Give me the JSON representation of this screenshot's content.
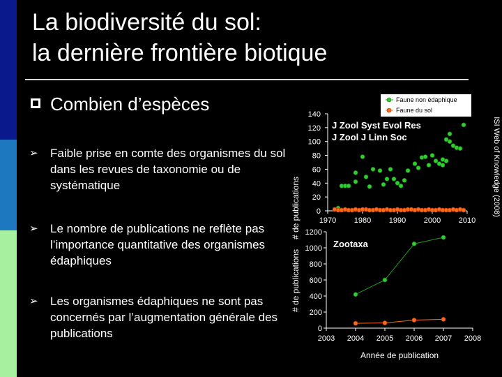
{
  "slide": {
    "title_line1": "La biodiversité du sol:",
    "title_line2": "la dernière frontière biotique",
    "heading": "Combien d’espèces",
    "bullets": [
      "Faible prise en comte des organismes du sol dans les revues de taxonomie ou de systématique",
      "Le nombre de publications ne reflète pas l’importance quantitative des organismes édaphiques",
      "Les organismes édaphiques ne sont pas concernés par l’augmentation générale des publications"
    ],
    "source": "ISI Web of Knowledge (2008)"
  },
  "colors": {
    "green": "#33cc33",
    "orange": "#ff6a1a",
    "line": "#1f9c1f"
  },
  "chart_data": [
    {
      "type": "scatter",
      "annotation_line1": "J Zool Syst Evol Res",
      "annotation_line2": "J Zool J Linn Soc",
      "ylabel": "# de publications",
      "xlabel": "",
      "xlim": [
        1970,
        2010
      ],
      "ylim": [
        0,
        140
      ],
      "xticks": [
        1970,
        1980,
        1990,
        2000,
        2010
      ],
      "yticks": [
        0,
        20,
        40,
        60,
        80,
        100,
        120,
        140
      ],
      "legend_position": "top-right",
      "series": [
        {
          "name": "Faune non édaphique",
          "color": "#33cc33",
          "points": [
            [
              1973,
              4
            ],
            [
              1974,
              36
            ],
            [
              1975,
              36
            ],
            [
              1976,
              36
            ],
            [
              1978,
              55
            ],
            [
              1978,
              42
            ],
            [
              1980,
              78
            ],
            [
              1981,
              49
            ],
            [
              1982,
              35
            ],
            [
              1983,
              60
            ],
            [
              1985,
              58
            ],
            [
              1986,
              38
            ],
            [
              1987,
              46
            ],
            [
              1988,
              60
            ],
            [
              1989,
              46
            ],
            [
              1990,
              40
            ],
            [
              1991,
              36
            ],
            [
              1992,
              44
            ],
            [
              1993,
              58
            ],
            [
              1995,
              68
            ],
            [
              1996,
              62
            ],
            [
              1997,
              77
            ],
            [
              1998,
              78
            ],
            [
              1999,
              66
            ],
            [
              2000,
              80
            ],
            [
              2001,
              72
            ],
            [
              2002,
              68
            ],
            [
              2003,
              74
            ],
            [
              2003,
              66
            ],
            [
              2004,
              72
            ],
            [
              2004,
              103
            ],
            [
              2005,
              100
            ],
            [
              2005,
              111
            ],
            [
              2006,
              94
            ],
            [
              2007,
              91
            ],
            [
              2008,
              90
            ],
            [
              2009,
              124
            ]
          ]
        },
        {
          "name": "Faune du sol",
          "color": "#ff6a1a",
          "points": [
            [
              1972,
              2
            ],
            [
              1973,
              1
            ],
            [
              1974,
              1
            ],
            [
              1975,
              2
            ],
            [
              1976,
              1
            ],
            [
              1977,
              1
            ],
            [
              1978,
              2
            ],
            [
              1979,
              1
            ],
            [
              1980,
              2
            ],
            [
              1981,
              2
            ],
            [
              1982,
              1
            ],
            [
              1983,
              1
            ],
            [
              1984,
              2
            ],
            [
              1985,
              1
            ],
            [
              1986,
              1
            ],
            [
              1987,
              2
            ],
            [
              1988,
              1
            ],
            [
              1989,
              1
            ],
            [
              1990,
              2
            ],
            [
              1991,
              1
            ],
            [
              1992,
              1
            ],
            [
              1993,
              2
            ],
            [
              1994,
              2
            ],
            [
              1995,
              1
            ],
            [
              1996,
              2
            ],
            [
              1997,
              1
            ],
            [
              1998,
              1
            ],
            [
              1999,
              2
            ],
            [
              2000,
              1
            ],
            [
              2001,
              1
            ],
            [
              2002,
              2
            ],
            [
              2003,
              1
            ],
            [
              2004,
              1
            ],
            [
              2005,
              1
            ],
            [
              2006,
              2
            ],
            [
              2007,
              1
            ],
            [
              2008,
              2
            ],
            [
              2009,
              1
            ]
          ]
        }
      ]
    },
    {
      "type": "line",
      "annotation": "Zootaxa",
      "ylabel": "# de publications",
      "xlabel": "Année de publication",
      "xlim": [
        2003,
        2008
      ],
      "ylim": [
        0,
        1200
      ],
      "xticks": [
        2003,
        2004,
        2005,
        2006,
        2007,
        2008
      ],
      "yticks": [
        0,
        200,
        400,
        600,
        800,
        1000,
        1200
      ],
      "series": [
        {
          "name": "Faune non édaphique",
          "color": "#33cc33",
          "x": [
            2004,
            2005,
            2006,
            2007
          ],
          "values": [
            420,
            600,
            1050,
            1130
          ]
        },
        {
          "name": "Faune du sol",
          "color": "#ff6a1a",
          "x": [
            2004,
            2005,
            2006,
            2007
          ],
          "values": [
            60,
            65,
            100,
            110
          ]
        }
      ]
    }
  ]
}
